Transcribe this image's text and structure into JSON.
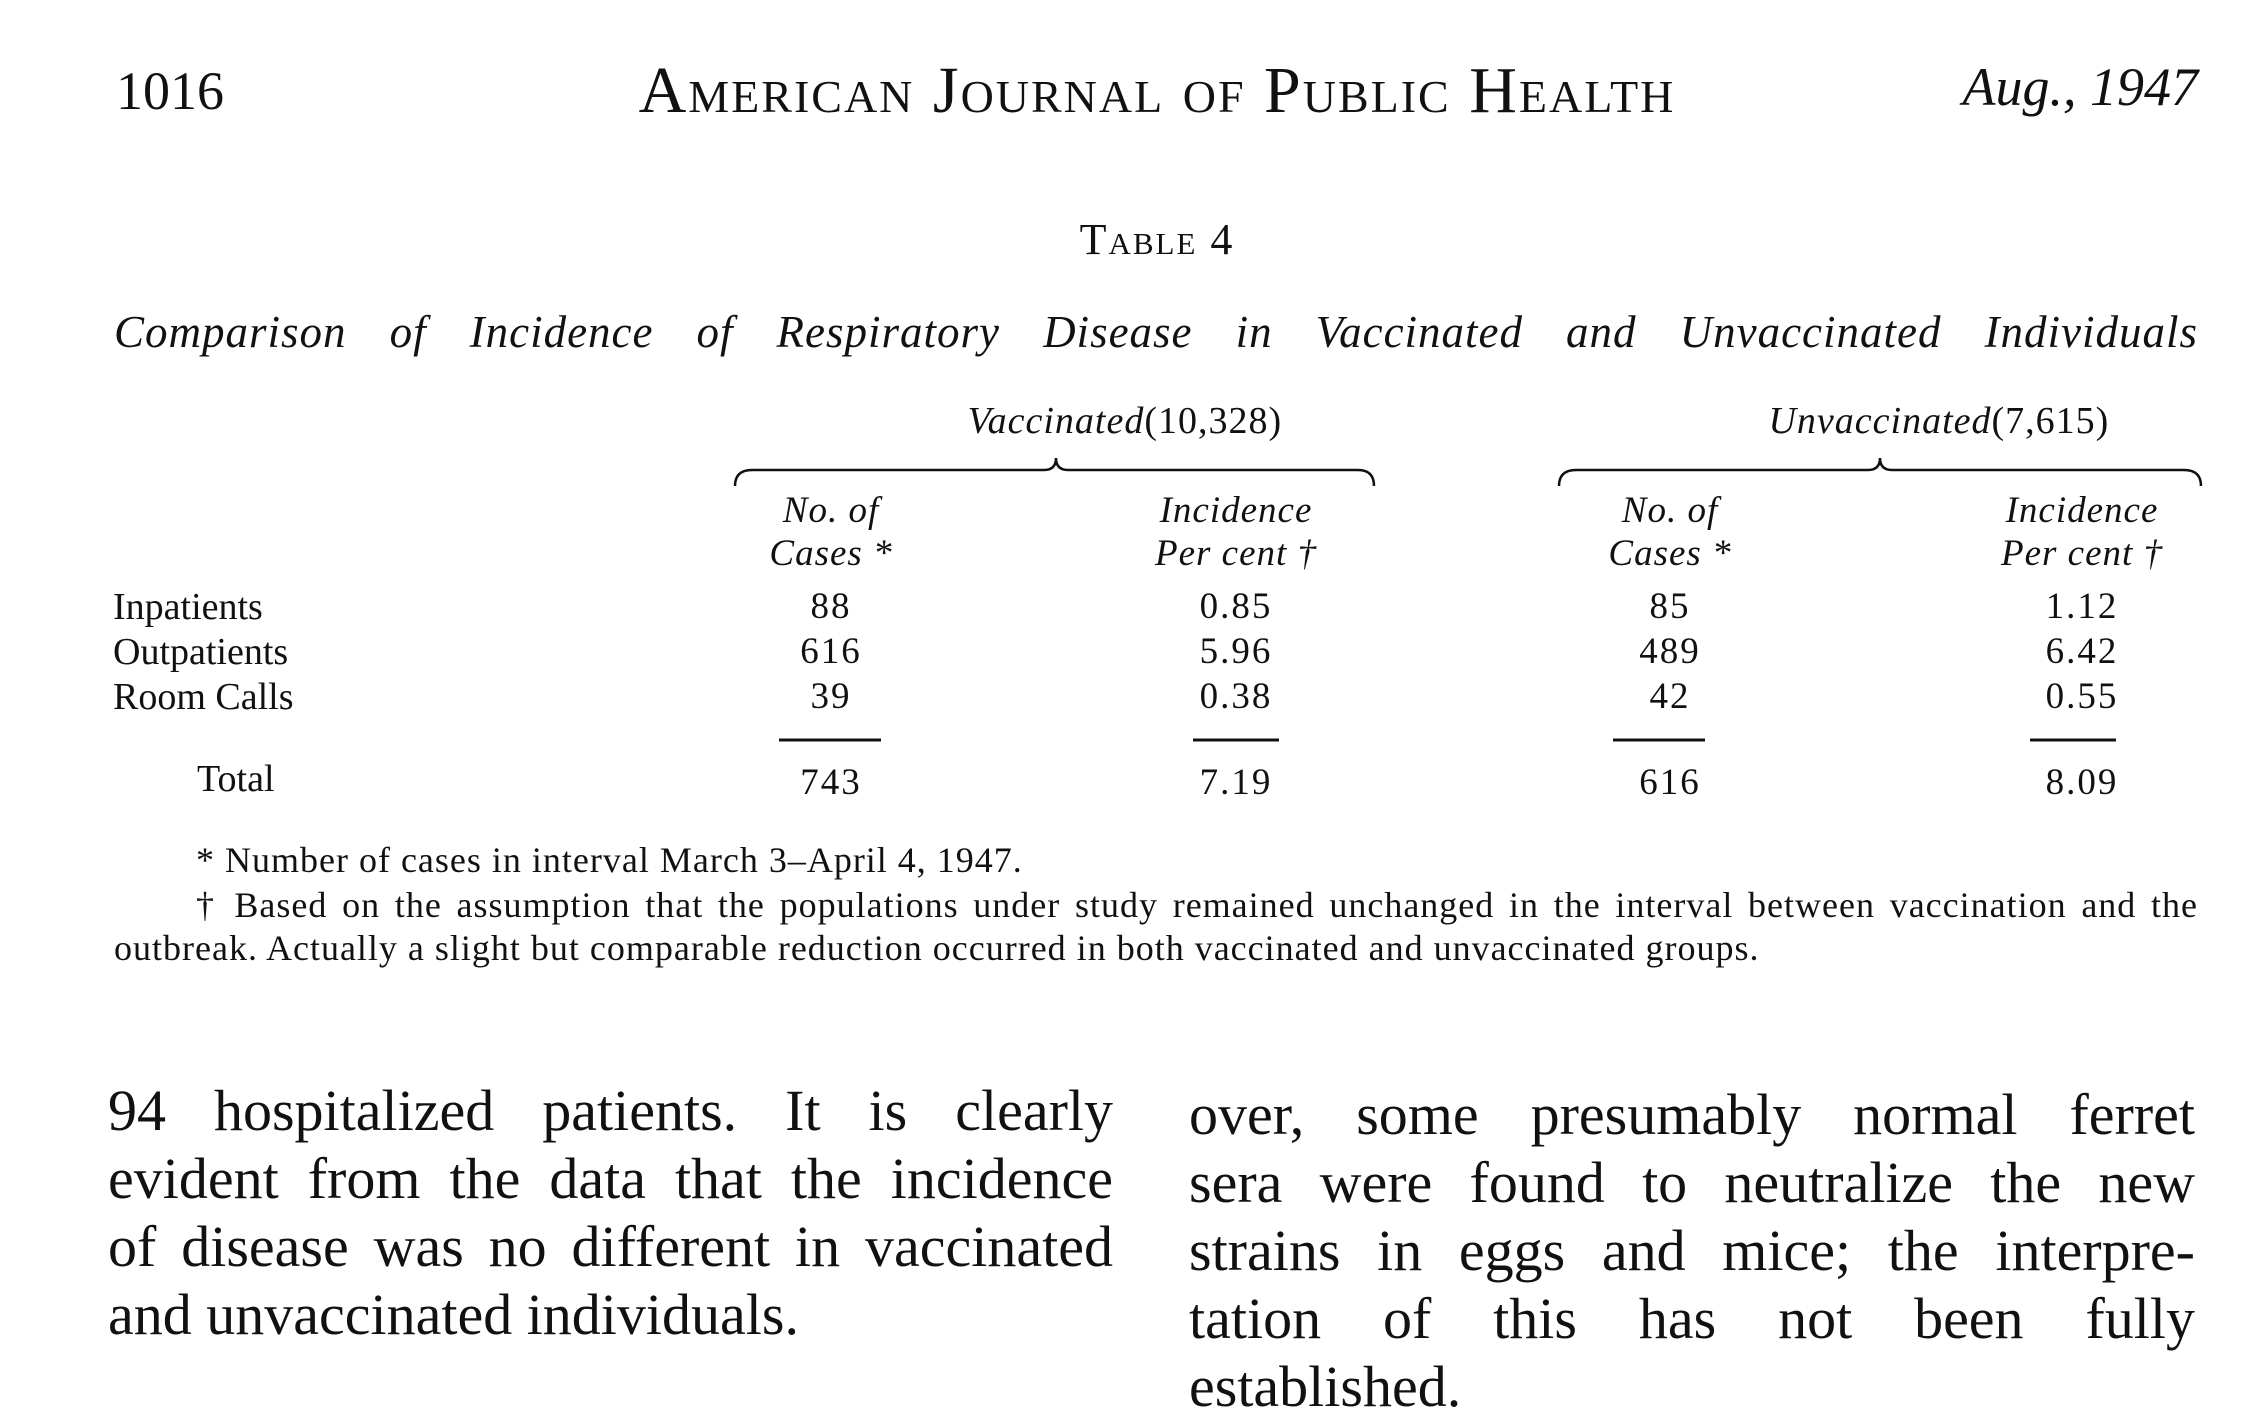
{
  "header": {
    "page": "1016",
    "journal": "American Journal of Public Health",
    "date": "Aug., 1947"
  },
  "table": {
    "label": "Table 4",
    "caption": "Comparison of Incidence of Respiratory Disease in Vaccinated and Unvaccinated Individuals",
    "groups": [
      {
        "name": "Vaccinated",
        "count": "(10,328)"
      },
      {
        "name": "Unvaccinated",
        "count": "(7,615)"
      }
    ],
    "columns": [
      [
        "No. of",
        "Cases *"
      ],
      [
        "Incidence",
        "Per cent †"
      ],
      [
        "No. of",
        "Cases *"
      ],
      [
        "Incidence",
        "Per cent †"
      ]
    ],
    "rows": [
      [
        "Inpatients",
        "88",
        "0.85",
        "85",
        "1.12"
      ],
      [
        "Outpatients",
        "616",
        "5.96",
        "489",
        "6.42"
      ],
      [
        "Room Calls",
        "39",
        "0.38",
        "42",
        "0.55"
      ]
    ],
    "total": [
      "Total",
      "743",
      "7.19",
      "616",
      "8.09"
    ],
    "footnotes": [
      "* Number of cases in interval March 3–April 4, 1947.",
      "† Based on the assumption that the populations under study remained unchanged in the interval between vaccination and the outbreak. Actually a slight but comparable reduction occurred in both vaccinated and unvaccinated groups."
    ]
  },
  "body": {
    "left": [
      "94 hospitalized patients. It is clearly",
      "evident from the data that the incidence",
      "of disease was no different in vaccinated",
      "and unvaccinated individuals."
    ],
    "right": [
      "over, some presumably normal ferret",
      "sera were found to neutralize the new",
      "strains in eggs and mice; the interpre-",
      "tation of this has not been fully",
      "established."
    ]
  }
}
